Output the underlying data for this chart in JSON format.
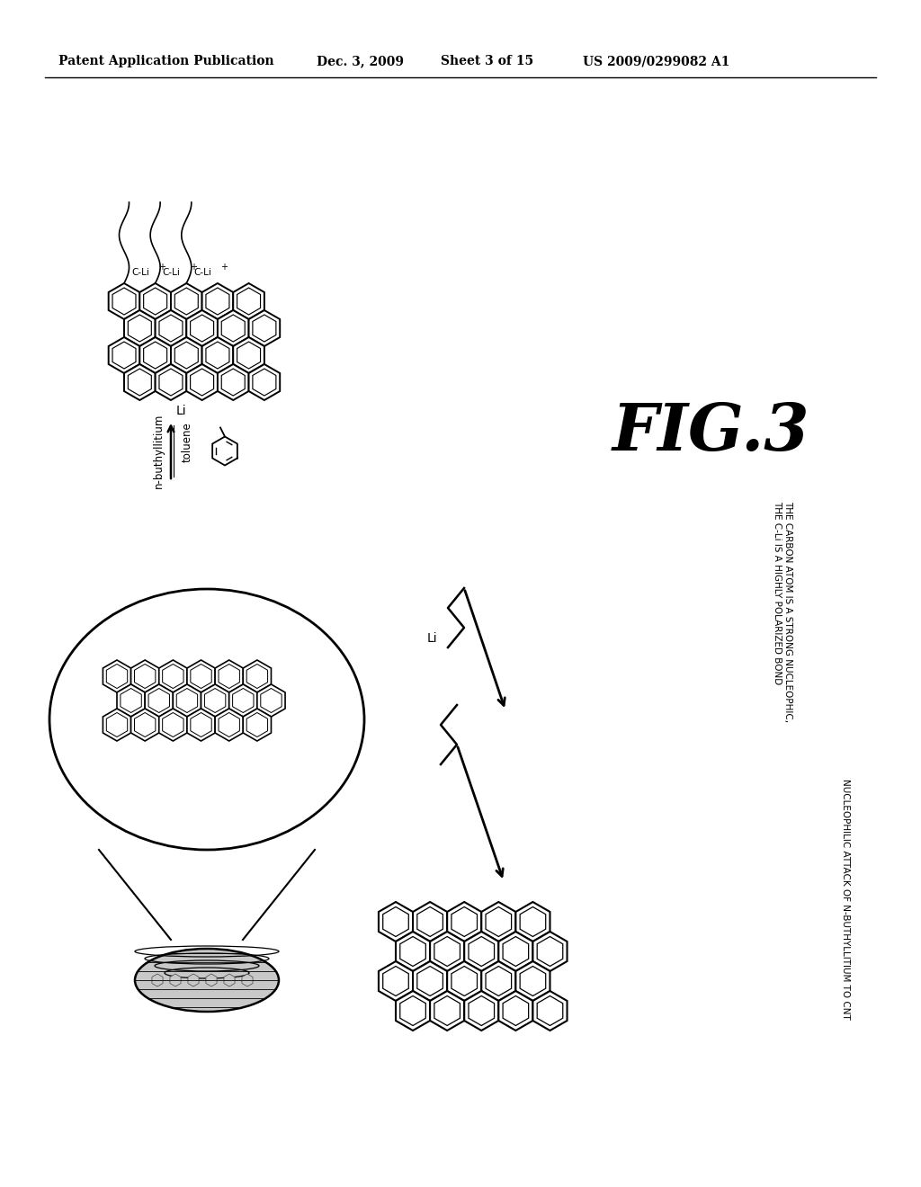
{
  "background_color": "#ffffff",
  "header_left": "Patent Application Publication",
  "header_date": "Dec. 3, 2009",
  "header_sheet": "Sheet 3 of 15",
  "header_patent": "US 2009/0299082 A1",
  "fig_label": "FIG.3",
  "text_nucleophic": "THE CARBON ATOM IS A STRONG NUCLEOPHIC,",
  "text_polarized": "THE C-Li IS A HIGHLY POLARIZED BOND",
  "text_nucleophilic": "NUCLEOPHILIC ATTACK OF N-BUTHYLLITIUM TO CNT",
  "label_nbut": "n-buthyllitium",
  "label_toluene": "toluene",
  "label_li_arrow": "Li",
  "label_li_mol": "Li"
}
